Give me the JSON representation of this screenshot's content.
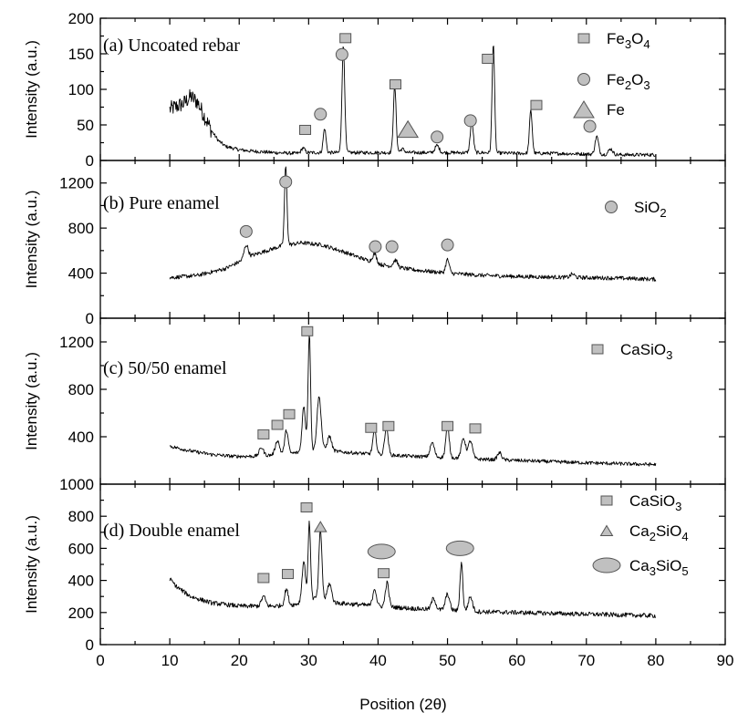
{
  "style": {
    "marker_fill": "#c0c0c0",
    "marker_stroke": "#555555",
    "line": "#000000"
  },
  "chart_data": [
    {
      "type": "line",
      "title": "(a) Uncoated rebar",
      "ylabel": "Intensity (a.u.)",
      "ylim": [
        0,
        200
      ],
      "yticks": [
        0,
        50,
        100,
        150,
        200
      ],
      "xlim": [
        0,
        90
      ],
      "legend": [
        {
          "label": "Fe",
          "sub": "3",
          "label2": "O",
          "sub2": "4",
          "marker": "square"
        },
        {
          "label": "Fe",
          "sub": "2",
          "label2": "O",
          "sub2": "3",
          "marker": "circle"
        },
        {
          "label": "Fe",
          "marker": "triangle"
        }
      ],
      "baseline": [
        [
          10,
          72
        ],
        [
          12,
          80
        ],
        [
          13,
          90
        ],
        [
          14,
          82
        ],
        [
          15,
          62
        ],
        [
          16,
          42
        ],
        [
          17,
          28
        ],
        [
          18,
          20
        ],
        [
          20,
          15
        ],
        [
          22,
          13
        ],
        [
          25,
          11
        ],
        [
          28,
          10
        ],
        [
          30,
          11
        ],
        [
          35,
          11
        ],
        [
          40,
          11
        ],
        [
          45,
          11
        ],
        [
          50,
          11
        ],
        [
          55,
          11
        ],
        [
          60,
          10
        ],
        [
          65,
          10
        ],
        [
          70,
          9
        ],
        [
          75,
          8
        ],
        [
          80,
          8
        ]
      ],
      "noise": 2.5,
      "noise_extra": [
        [
          10,
          16,
          9
        ]
      ],
      "peaks": [
        [
          29.2,
          7,
          0.25
        ],
        [
          32.3,
          34,
          0.2
        ],
        [
          35,
          150,
          0.2
        ],
        [
          42.4,
          93,
          0.2
        ],
        [
          43.5,
          5,
          0.3
        ],
        [
          48.5,
          10,
          0.3
        ],
        [
          53.5,
          44,
          0.22
        ],
        [
          56.6,
          155,
          0.18
        ],
        [
          62,
          60,
          0.2
        ],
        [
          71.5,
          25,
          0.25
        ],
        [
          73.5,
          8,
          0.3
        ]
      ],
      "markers": [
        {
          "shape": "square",
          "x": 29.5,
          "y": 43
        },
        {
          "shape": "square",
          "x": 35.3,
          "y": 172
        },
        {
          "shape": "square",
          "x": 42.5,
          "y": 107
        },
        {
          "shape": "square",
          "x": 55.8,
          "y": 143
        },
        {
          "shape": "square",
          "x": 62.8,
          "y": 78
        },
        {
          "shape": "circle",
          "x": 31.7,
          "y": 65
        },
        {
          "shape": "circle",
          "x": 34.8,
          "y": 149
        },
        {
          "shape": "circle",
          "x": 48.5,
          "y": 33
        },
        {
          "shape": "circle",
          "x": 53.3,
          "y": 56
        },
        {
          "shape": "circle",
          "x": 70.5,
          "y": 48
        },
        {
          "shape": "triangle",
          "x": 44.3,
          "y": 44
        }
      ]
    },
    {
      "type": "line",
      "title": "(b) Pure enamel",
      "ylabel": "Intensity (a.u.)",
      "ylim": [
        0,
        1400
      ],
      "yticks": [
        0,
        400,
        800,
        1200
      ],
      "xlim": [
        0,
        90
      ],
      "legend": [
        {
          "label": "SiO",
          "sub": "2",
          "marker": "circle"
        }
      ],
      "baseline": [
        [
          10,
          360
        ],
        [
          14,
          380
        ],
        [
          18,
          440
        ],
        [
          22,
          560
        ],
        [
          26,
          640
        ],
        [
          29,
          670
        ],
        [
          32,
          650
        ],
        [
          35,
          590
        ],
        [
          40,
          480
        ],
        [
          45,
          430
        ],
        [
          50,
          400
        ],
        [
          55,
          380
        ],
        [
          60,
          370
        ],
        [
          65,
          365
        ],
        [
          70,
          360
        ],
        [
          75,
          355
        ],
        [
          80,
          345
        ]
      ],
      "noise": 18,
      "peaks": [
        [
          21,
          120,
          0.3
        ],
        [
          26.7,
          700,
          0.18
        ],
        [
          39.5,
          80,
          0.3
        ],
        [
          42.5,
          60,
          0.3
        ],
        [
          50,
          120,
          0.25
        ],
        [
          68,
          30,
          0.3
        ]
      ],
      "markers": [
        {
          "shape": "circle",
          "x": 21,
          "y": 770
        },
        {
          "shape": "circle",
          "x": 26.7,
          "y": 1210
        },
        {
          "shape": "circle",
          "x": 39.6,
          "y": 635
        },
        {
          "shape": "circle",
          "x": 42,
          "y": 635
        },
        {
          "shape": "circle",
          "x": 50,
          "y": 650
        }
      ]
    },
    {
      "type": "line",
      "title": "(c) 50/50 enamel",
      "ylabel": "Intensity (a.u.)",
      "ylim": [
        0,
        1400
      ],
      "yticks": [
        400,
        800,
        1200
      ],
      "xlim": [
        0,
        90
      ],
      "legend": [
        {
          "label": "CaSiO",
          "sub": "3",
          "marker": "square"
        }
      ],
      "baseline": [
        [
          10,
          320
        ],
        [
          13,
          280
        ],
        [
          16,
          250
        ],
        [
          19,
          235
        ],
        [
          22,
          235
        ],
        [
          26,
          250
        ],
        [
          29,
          270
        ],
        [
          32,
          290
        ],
        [
          35,
          270
        ],
        [
          40,
          250
        ],
        [
          45,
          235
        ],
        [
          50,
          225
        ],
        [
          55,
          210
        ],
        [
          60,
          200
        ],
        [
          65,
          190
        ],
        [
          70,
          180
        ],
        [
          75,
          172
        ],
        [
          80,
          165
        ]
      ],
      "noise": 15,
      "peaks": [
        [
          23.2,
          70,
          0.3
        ],
        [
          25.5,
          120,
          0.3
        ],
        [
          26.8,
          200,
          0.25
        ],
        [
          29.3,
          380,
          0.25
        ],
        [
          30.1,
          990,
          0.18
        ],
        [
          31.5,
          450,
          0.3
        ],
        [
          33,
          120,
          0.3
        ],
        [
          39.5,
          200,
          0.25
        ],
        [
          41.2,
          240,
          0.25
        ],
        [
          47.8,
          120,
          0.3
        ],
        [
          50,
          260,
          0.25
        ],
        [
          52.3,
          170,
          0.3
        ],
        [
          53.3,
          150,
          0.3
        ],
        [
          57.5,
          60,
          0.3
        ]
      ],
      "markers": [
        {
          "shape": "square",
          "x": 23.5,
          "y": 420
        },
        {
          "shape": "square",
          "x": 25.5,
          "y": 500
        },
        {
          "shape": "square",
          "x": 27.2,
          "y": 590
        },
        {
          "shape": "square",
          "x": 29.8,
          "y": 1290
        },
        {
          "shape": "square",
          "x": 39,
          "y": 475
        },
        {
          "shape": "square",
          "x": 41.5,
          "y": 490
        },
        {
          "shape": "square",
          "x": 50,
          "y": 490
        },
        {
          "shape": "square",
          "x": 54,
          "y": 470
        }
      ]
    },
    {
      "type": "line",
      "title": "(d) Double enamel",
      "ylabel": "Intensity (a.u.)",
      "xlabel": "Position (2θ)",
      "ylim": [
        0,
        1000
      ],
      "yticks": [
        0,
        200,
        400,
        600,
        800,
        1000
      ],
      "xticks": [
        0,
        10,
        20,
        30,
        40,
        50,
        60,
        70,
        80,
        90
      ],
      "xlim": [
        0,
        90
      ],
      "legend": [
        {
          "label": "CaSiO",
          "sub": "3",
          "marker": "square"
        },
        {
          "label": "Ca",
          "sub": "2",
          "label2": "SiO",
          "sub2": "4",
          "marker": "triangle"
        },
        {
          "label": "Ca",
          "sub": "3",
          "label2": "SiO",
          "sub2": "5",
          "marker": "ellipse"
        }
      ],
      "baseline": [
        [
          10,
          410
        ],
        [
          11,
          360
        ],
        [
          13,
          300
        ],
        [
          16,
          260
        ],
        [
          20,
          240
        ],
        [
          25,
          240
        ],
        [
          28,
          250
        ],
        [
          31,
          290
        ],
        [
          34,
          260
        ],
        [
          40,
          240
        ],
        [
          45,
          225
        ],
        [
          50,
          215
        ],
        [
          55,
          205
        ],
        [
          60,
          200
        ],
        [
          65,
          195
        ],
        [
          70,
          190
        ],
        [
          75,
          185
        ],
        [
          80,
          180
        ]
      ],
      "noise": 14,
      "peaks": [
        [
          23.5,
          60,
          0.3
        ],
        [
          26.8,
          100,
          0.25
        ],
        [
          29.3,
          250,
          0.25
        ],
        [
          30.1,
          480,
          0.18
        ],
        [
          31.7,
          430,
          0.22
        ],
        [
          33,
          110,
          0.3
        ],
        [
          39.5,
          110,
          0.25
        ],
        [
          41.3,
          150,
          0.25
        ],
        [
          48,
          70,
          0.3
        ],
        [
          50,
          100,
          0.3
        ],
        [
          52,
          300,
          0.2
        ],
        [
          53.3,
          90,
          0.3
        ]
      ],
      "markers": [
        {
          "shape": "square",
          "x": 23.5,
          "y": 415
        },
        {
          "shape": "square",
          "x": 27,
          "y": 440
        },
        {
          "shape": "square",
          "x": 29.7,
          "y": 855
        },
        {
          "shape": "square",
          "x": 40.8,
          "y": 445
        },
        {
          "shape": "triangle",
          "x": 31.7,
          "y": 735
        },
        {
          "shape": "ellipse",
          "x": 40.5,
          "y": 580
        },
        {
          "shape": "ellipse",
          "x": 51.8,
          "y": 600
        }
      ]
    }
  ]
}
